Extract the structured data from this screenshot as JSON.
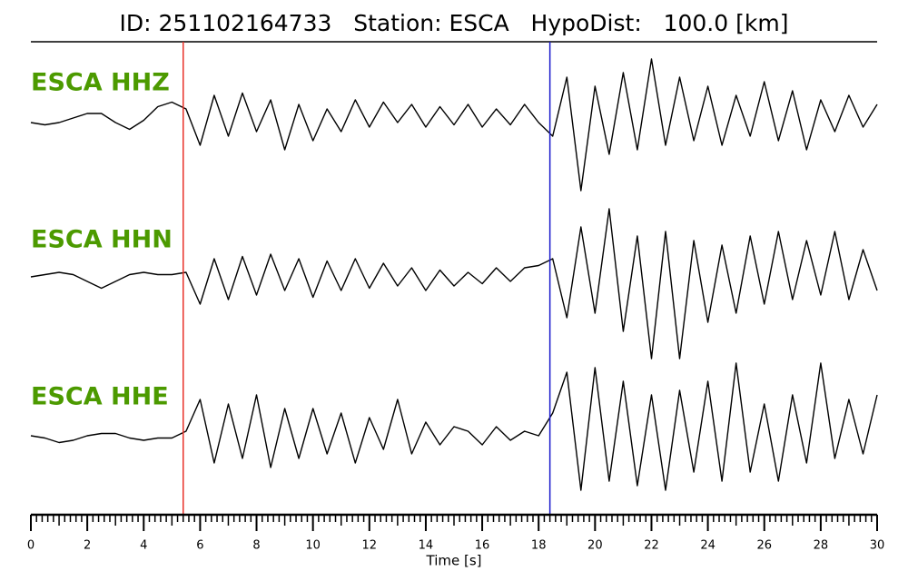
{
  "chart_data": {
    "type": "line",
    "title": "ID: 251102164733   Station: ESCA   HypoDist:   100.0 [km]",
    "xlabel": "Time [s]",
    "xlim": [
      0,
      30
    ],
    "xticks": [
      0,
      2,
      4,
      6,
      8,
      10,
      12,
      14,
      16,
      18,
      20,
      22,
      24,
      26,
      28,
      30
    ],
    "minor_tick_step": 0.2,
    "label_color": "#4c9a00",
    "x": [
      0,
      0.5,
      1,
      1.5,
      2,
      2.5,
      3,
      3.5,
      4,
      4.5,
      5,
      5.5,
      6,
      6.5,
      7,
      7.5,
      8,
      8.5,
      9,
      9.5,
      10,
      10.5,
      11,
      11.5,
      12,
      12.5,
      13,
      13.5,
      14,
      14.5,
      15,
      15.5,
      16,
      16.5,
      17,
      17.5,
      18,
      18.5,
      19,
      19.5,
      20,
      20.5,
      21,
      21.5,
      22,
      22.5,
      23,
      23.5,
      24,
      24.5,
      25,
      25.5,
      26,
      26.5,
      27,
      27.5,
      28,
      28.5,
      29,
      29.5,
      30
    ],
    "series": [
      {
        "name": "ESCA HHZ",
        "color": "#000000",
        "values": [
          -0.1,
          -0.15,
          -0.1,
          0,
          0.1,
          0.1,
          -0.1,
          -0.25,
          -0.05,
          0.25,
          0.35,
          0.2,
          -0.6,
          0.5,
          -0.4,
          0.55,
          -0.3,
          0.4,
          -0.7,
          0.3,
          -0.5,
          0.2,
          -0.3,
          0.4,
          -0.2,
          0.35,
          -0.1,
          0.3,
          -0.2,
          0.25,
          -0.15,
          0.3,
          -0.2,
          0.2,
          -0.15,
          0.3,
          -0.1,
          -0.4,
          0.9,
          -1.6,
          0.7,
          -0.8,
          1.0,
          -0.7,
          1.3,
          -0.6,
          0.9,
          -0.5,
          0.7,
          -0.6,
          0.5,
          -0.4,
          0.8,
          -0.5,
          0.6,
          -0.7,
          0.4,
          -0.3,
          0.5,
          -0.2,
          0.3
        ]
      },
      {
        "name": "ESCA HHN",
        "color": "#000000",
        "values": [
          0,
          0.05,
          0.1,
          0.05,
          -0.1,
          -0.25,
          -0.1,
          0.05,
          0.1,
          0.05,
          0.05,
          0.1,
          -0.6,
          0.4,
          -0.5,
          0.45,
          -0.4,
          0.5,
          -0.3,
          0.4,
          -0.45,
          0.35,
          -0.3,
          0.4,
          -0.25,
          0.3,
          -0.2,
          0.2,
          -0.3,
          0.15,
          -0.2,
          0.1,
          -0.15,
          0.2,
          -0.1,
          0.2,
          0.25,
          0.4,
          -0.9,
          1.1,
          -0.8,
          1.5,
          -1.2,
          0.9,
          -1.8,
          1.0,
          -1.8,
          0.8,
          -1.0,
          0.7,
          -0.8,
          0.9,
          -0.6,
          1.0,
          -0.5,
          0.8,
          -0.4,
          1.0,
          -0.5,
          0.6,
          -0.3
        ]
      },
      {
        "name": "ESCA HHE",
        "color": "#000000",
        "values": [
          0,
          -0.05,
          -0.15,
          -0.1,
          0,
          0.05,
          0.05,
          -0.05,
          -0.1,
          -0.05,
          -0.05,
          0.1,
          0.8,
          -0.6,
          0.7,
          -0.5,
          0.9,
          -0.7,
          0.6,
          -0.5,
          0.6,
          -0.4,
          0.5,
          -0.6,
          0.4,
          -0.3,
          0.8,
          -0.4,
          0.3,
          -0.2,
          0.2,
          0.1,
          -0.2,
          0.2,
          -0.1,
          0.1,
          0,
          0.5,
          1.4,
          -1.2,
          1.5,
          -1.0,
          1.2,
          -1.1,
          0.9,
          -1.2,
          1.0,
          -0.8,
          1.2,
          -1.0,
          1.6,
          -0.8,
          0.7,
          -1.0,
          0.9,
          -0.6,
          1.6,
          -0.5,
          0.8,
          -0.4,
          0.9
        ]
      }
    ],
    "markers": [
      {
        "x": 5.4,
        "color": "#e8322a"
      },
      {
        "x": 18.4,
        "color": "#1a1acc"
      }
    ]
  }
}
